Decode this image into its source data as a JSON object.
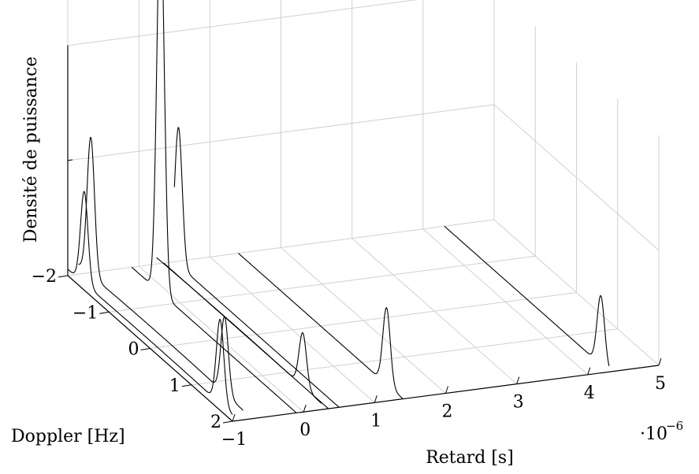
{
  "chart_data": {
    "type": "3d-line",
    "xlabel": "Retard [s]",
    "ylabel": "Doppler [Hz]",
    "zlabel": "Densité de puissance",
    "x_multiplier_label": "·10",
    "x_multiplier_exp": "−6",
    "xlim": [
      -1e-06,
      5e-06
    ],
    "ylim": [
      -2,
      2
    ],
    "x_ticks": [
      -1e-06,
      0,
      1e-06,
      2e-06,
      3e-06,
      4e-06,
      5e-06
    ],
    "x_tick_labels": [
      "−1",
      "0",
      "1",
      "2",
      "3",
      "4",
      "5"
    ],
    "y_ticks": [
      -2,
      -1,
      0,
      1,
      2
    ],
    "y_tick_labels": [
      "−2",
      "−1",
      "0",
      "1",
      "2"
    ],
    "grid": true,
    "series": [
      {
        "delay": -1e-06,
        "peaks": [
          {
            "doppler": -1.6,
            "height": 0.24
          },
          {
            "doppler": 1.7,
            "height": 0.22
          }
        ],
        "baseline": 0.02
      },
      {
        "delay": -8.5e-07,
        "peaks": [
          {
            "doppler": -1.7,
            "height": 0.36
          },
          {
            "doppler": 1.55,
            "height": 0.2
          }
        ],
        "baseline": 0.03
      },
      {
        "delay": -1e-07,
        "peaks": [
          {
            "doppler": -1.3,
            "height": 1.0
          }
        ],
        "baseline": 0.0
      },
      {
        "delay": 2.5e-07,
        "peaks": [
          {
            "doppler": 1.55,
            "height": 0.14
          }
        ],
        "baseline": 0.02
      },
      {
        "delay": 3.5e-07,
        "peaks": [],
        "baseline": 0.0
      },
      {
        "delay": 5e-07,
        "peaks": [
          {
            "doppler": -1.9,
            "height": 0.36
          }
        ],
        "baseline": 0.0
      },
      {
        "delay": 1.4e-06,
        "peaks": [
          {
            "doppler": 1.6,
            "height": 0.2
          }
        ],
        "baseline": 0.0
      },
      {
        "delay": 4.3e-06,
        "peaks": [
          {
            "doppler": 1.8,
            "height": 0.18
          }
        ],
        "baseline": 0.0
      }
    ]
  }
}
